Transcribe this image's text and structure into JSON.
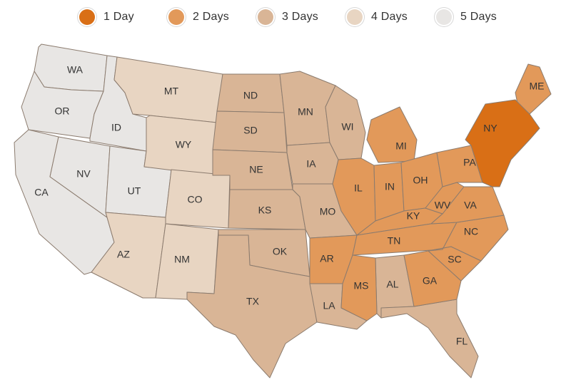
{
  "legend": {
    "items": [
      {
        "label": "1 Day",
        "color": "#d96f16"
      },
      {
        "label": "2 Days",
        "color": "#e2995a"
      },
      {
        "label": "3 Days",
        "color": "#d9b596"
      },
      {
        "label": "4 Days",
        "color": "#e8d5c2"
      },
      {
        "label": "5 Days",
        "color": "#e8e6e4"
      }
    ]
  },
  "states": [
    {
      "code": "WA",
      "days": 5
    },
    {
      "code": "OR",
      "days": 5
    },
    {
      "code": "ID",
      "days": 5
    },
    {
      "code": "NV",
      "days": 5
    },
    {
      "code": "UT",
      "days": 5
    },
    {
      "code": "CA",
      "days": 5
    },
    {
      "code": "MT",
      "days": 4
    },
    {
      "code": "WY",
      "days": 4
    },
    {
      "code": "CO",
      "days": 4
    },
    {
      "code": "AZ",
      "days": 4
    },
    {
      "code": "NM",
      "days": 4
    },
    {
      "code": "ND",
      "days": 3
    },
    {
      "code": "SD",
      "days": 3
    },
    {
      "code": "NE",
      "days": 3
    },
    {
      "code": "KS",
      "days": 3
    },
    {
      "code": "OK",
      "days": 3
    },
    {
      "code": "TX",
      "days": 3
    },
    {
      "code": "MN",
      "days": 3
    },
    {
      "code": "IA",
      "days": 3
    },
    {
      "code": "MO",
      "days": 3
    },
    {
      "code": "LA",
      "days": 3
    },
    {
      "code": "AL",
      "days": 3
    },
    {
      "code": "FL",
      "days": 3
    },
    {
      "code": "WI",
      "days": 3
    },
    {
      "code": "AR",
      "days": 2
    },
    {
      "code": "MS",
      "days": 2
    },
    {
      "code": "IL",
      "days": 2
    },
    {
      "code": "IN",
      "days": 2
    },
    {
      "code": "MI",
      "days": 2
    },
    {
      "code": "OH",
      "days": 2
    },
    {
      "code": "KY",
      "days": 2
    },
    {
      "code": "TN",
      "days": 2
    },
    {
      "code": "GA",
      "days": 2
    },
    {
      "code": "SC",
      "days": 2
    },
    {
      "code": "NC",
      "days": 2
    },
    {
      "code": "VA",
      "days": 2
    },
    {
      "code": "WV",
      "days": 2
    },
    {
      "code": "PA",
      "days": 2
    },
    {
      "code": "ME",
      "days": 2
    },
    {
      "code": "NY",
      "days": 1
    }
  ]
}
